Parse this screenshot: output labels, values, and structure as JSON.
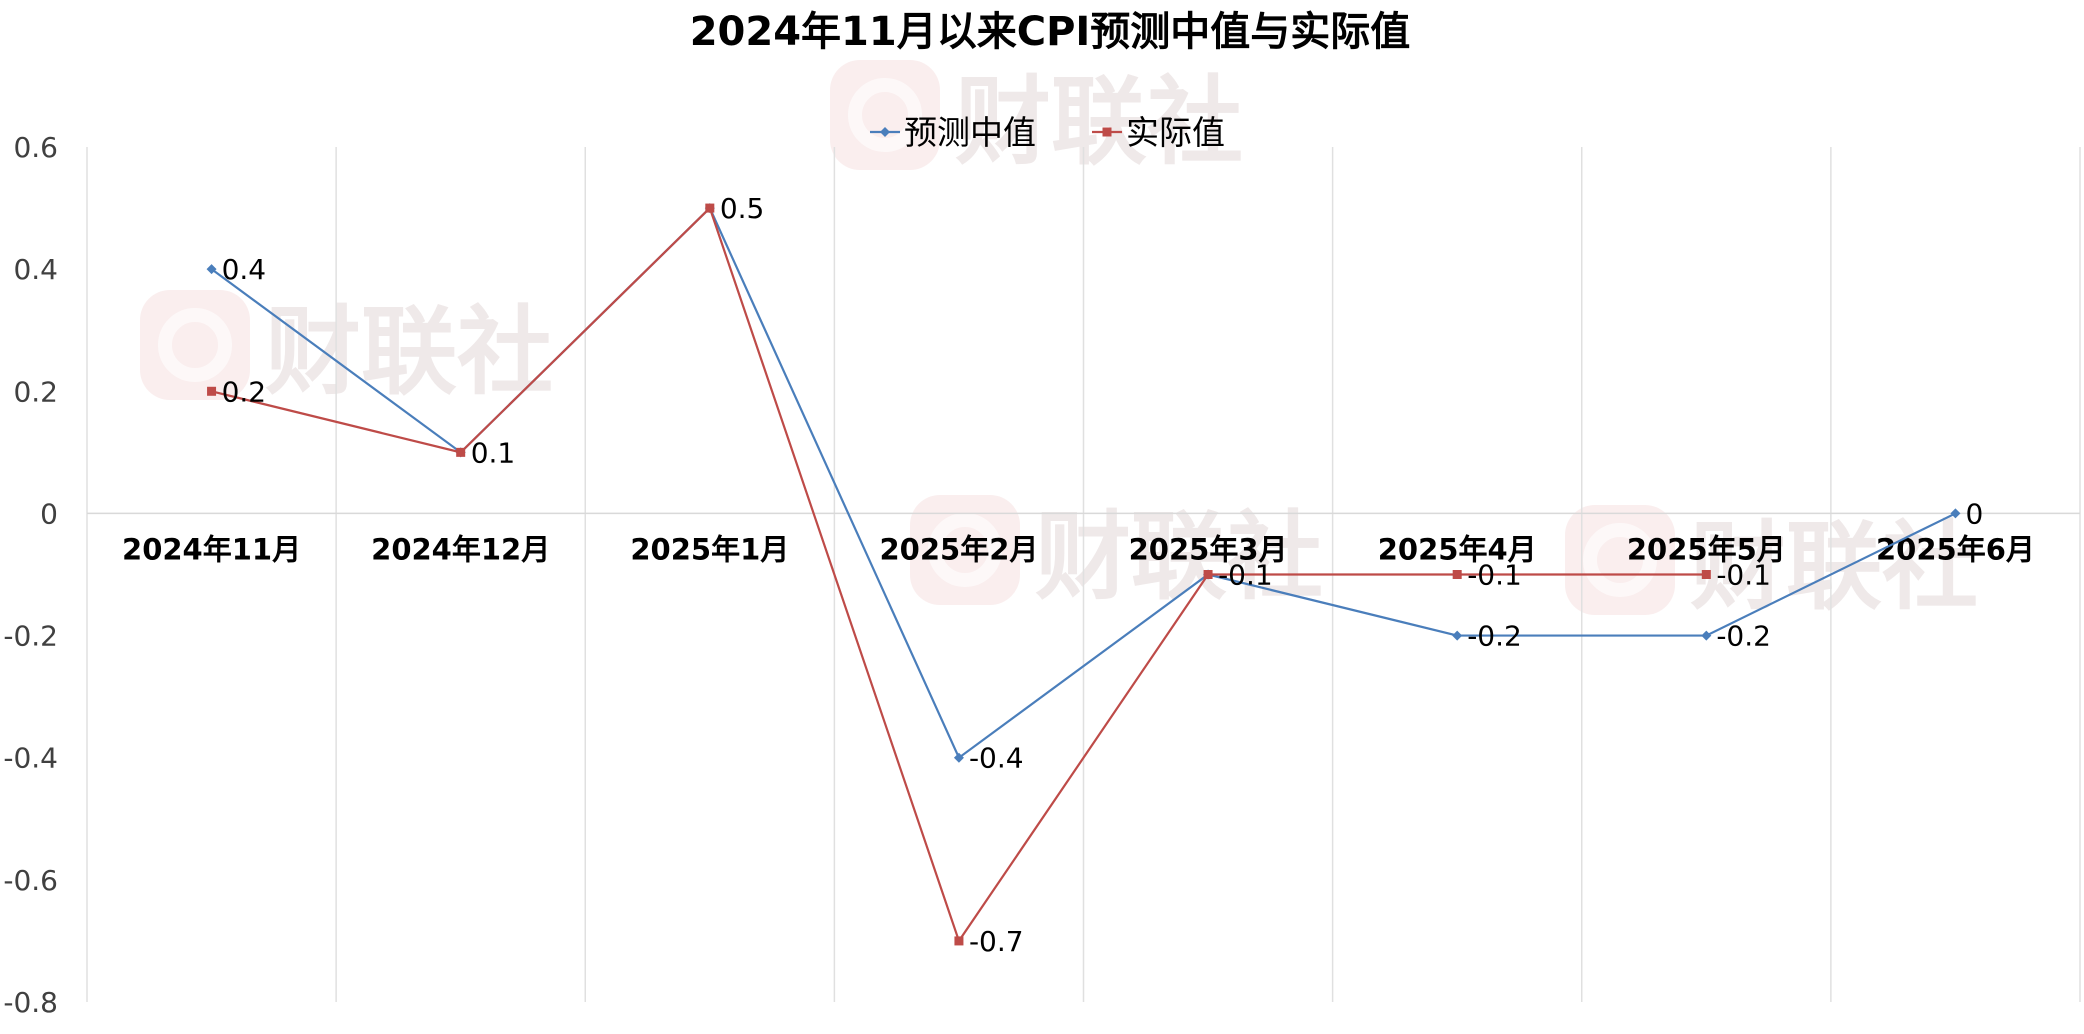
{
  "chart_data": {
    "type": "line",
    "title": "2024年11月以来CPI预测中值与实际值",
    "categories": [
      "2024年11月",
      "2024年12月",
      "2025年1月",
      "2025年2月",
      "2025年3月",
      "2025年4月",
      "2025年5月",
      "2025年6月"
    ],
    "series": [
      {
        "name": "预测中值",
        "color": "#4a7ebb",
        "marker": "diamond",
        "values": [
          0.4,
          0.1,
          0.5,
          -0.4,
          -0.1,
          -0.2,
          -0.2,
          0
        ]
      },
      {
        "name": "实际值",
        "color": "#be4b48",
        "marker": "square",
        "values": [
          0.2,
          0.1,
          0.5,
          -0.7,
          -0.1,
          -0.1,
          -0.1,
          null
        ]
      }
    ],
    "data_labels": {
      "预测中值": [
        "0.4",
        "",
        "",
        "-0.4",
        "",
        "-0.2",
        "-0.2",
        "0"
      ],
      "实际值": [
        "0.2",
        "0.1",
        "0.5",
        "-0.7",
        "-0.1",
        "-0.1",
        "-0.1",
        ""
      ]
    },
    "y_ticks": [
      "0.6",
      "0.4",
      "0.2",
      "0",
      "-0.2",
      "-0.4",
      "-0.6",
      "-0.8"
    ],
    "ylim": [
      -0.8,
      0.6
    ],
    "xlabel": "",
    "ylabel": "",
    "grid": "vertical",
    "legend_position": "top-center",
    "watermark": "财联社",
    "watermark_color": "#f5d9d9"
  }
}
